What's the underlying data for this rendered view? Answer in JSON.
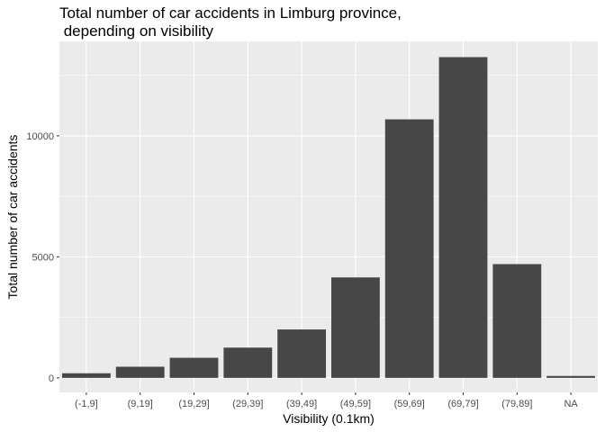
{
  "chart_data": {
    "type": "bar",
    "title": "Total number of car accidents in Limburg province,\n depending on visibility",
    "xlabel": "Visibility (0.1km)",
    "ylabel": "Total number of car accidents",
    "categories": [
      "(-1,9]",
      "(9,19]",
      "(19,29]",
      "(29,39]",
      "(39,49]",
      "(49,59]",
      "(59,69]",
      "(69,79]",
      "(79,89]",
      "NA"
    ],
    "values": [
      190,
      460,
      830,
      1250,
      2000,
      4150,
      10680,
      13250,
      4700,
      80
    ],
    "ylim": [
      -600,
      13900
    ],
    "yticks": [
      0,
      5000,
      10000
    ],
    "ytick_labels": [
      "0",
      "5000",
      "10000"
    ],
    "grid": true,
    "legend": "none",
    "colors": {
      "bar": "#474747",
      "panel": "#ebebeb",
      "grid_major": "#ffffff",
      "tick": "#333333",
      "tick_label": "#4d4d4d"
    }
  }
}
